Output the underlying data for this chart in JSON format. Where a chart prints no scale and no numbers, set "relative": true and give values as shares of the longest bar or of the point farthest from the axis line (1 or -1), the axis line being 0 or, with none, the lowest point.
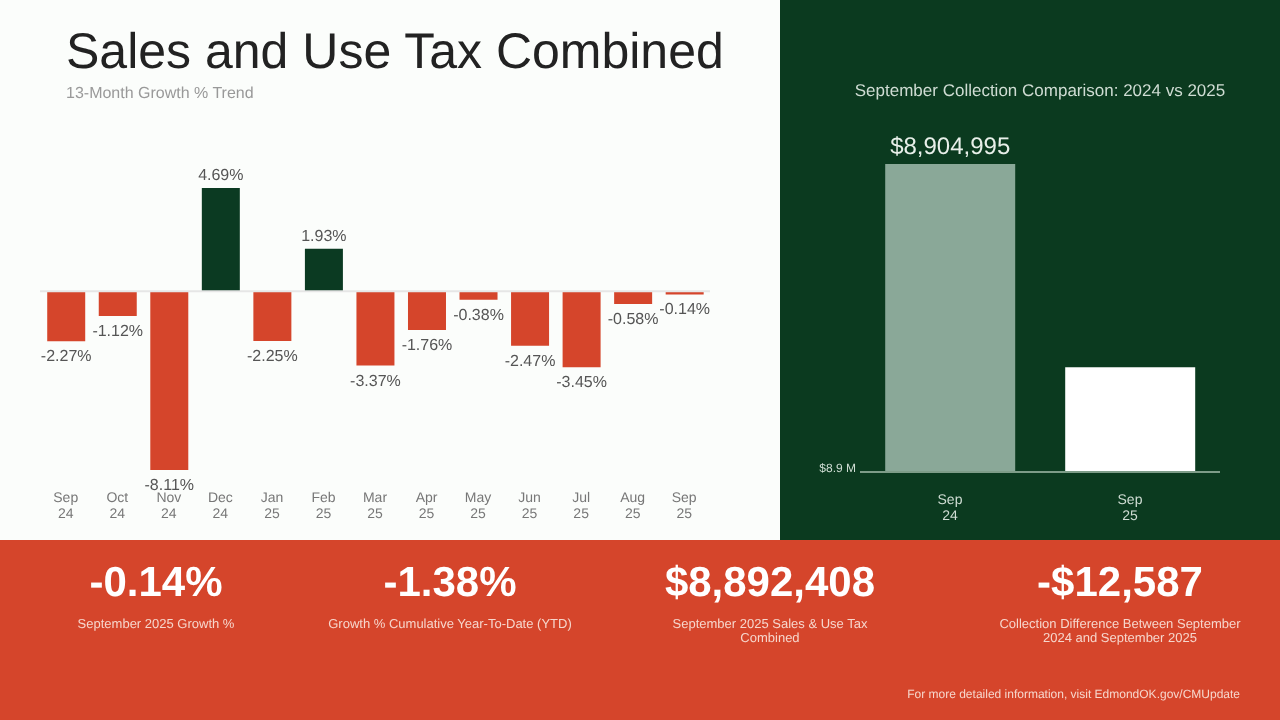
{
  "chart_data": [
    {
      "type": "bar",
      "title": "Sales and Use Tax Combined",
      "subtitle": "13-Month Growth % Trend",
      "categories": [
        "Sep 24",
        "Oct 24",
        "Nov 24",
        "Dec 24",
        "Jan 25",
        "Feb 25",
        "Mar 25",
        "Apr 25",
        "May 25",
        "Jun 25",
        "Jul 25",
        "Aug 25",
        "Sep 25"
      ],
      "values": [
        -2.27,
        -1.12,
        -8.11,
        4.69,
        -2.25,
        1.93,
        -3.37,
        -1.76,
        -0.38,
        -2.47,
        -3.45,
        -0.58,
        -0.14
      ],
      "colors": [
        "#d5452b",
        "#d5452b",
        "#d5452b",
        "#0b3a22",
        "#d5452b",
        "#0b3a22",
        "#d5452b",
        "#d5452b",
        "#d5452b",
        "#d5452b",
        "#d5452b",
        "#d5452b",
        "#d5452b"
      ],
      "value_labels": [
        "-2.27%",
        "-1.12%",
        "-8.11%",
        "4.69%",
        "-2.25%",
        "1.93%",
        "-3.37%",
        "-1.76%",
        "-0.38%",
        "-2.47%",
        "-3.45%",
        "-0.58%",
        "-0.14%"
      ]
    },
    {
      "type": "bar",
      "title": "September Collection Comparison: 2024 vs 2025",
      "categories": [
        "Sep 24",
        "Sep 25"
      ],
      "values": [
        1,
        0.34
      ],
      "colors": [
        "#8aa898",
        "#ffffff"
      ],
      "relative": true,
      "annotations": [
        "$8.9 M",
        {
          "text": "$8,904,995",
          "x": "Sep 24",
          "y": 1
        }
      ]
    },
    {
      "type": "other",
      "annotations": [
        "-0.14%",
        "September 2025 Growth %",
        "-1.38%",
        "Growth % Cumulative Year-To-Date (YTD)",
        "$8,892,408",
        "September 2025 Sales & Use Tax Combined",
        "-$12,587",
        "Collection Difference Between September 2024 and September 2025",
        "For more detailed information, visit EdmondOK.gov/CMUpdate"
      ]
    }
  ]
}
